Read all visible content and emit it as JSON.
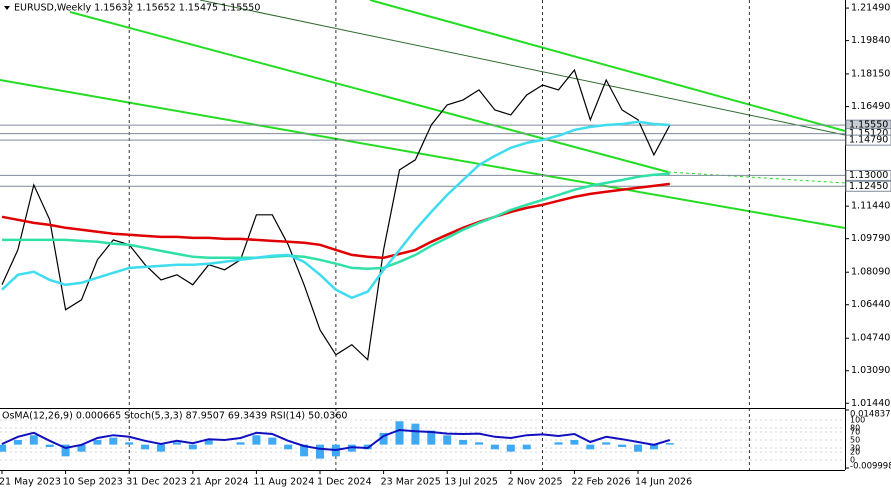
{
  "chart_data": [
    {
      "type": "line",
      "title": "EURUSD,Weekly 1.15632 1.15652 1.15475 1.15550",
      "categories": [
        "21 May 2023",
        null,
        null,
        null,
        "10 Sep 2023",
        null,
        null,
        null,
        "31 Dec 2023",
        null,
        null,
        null,
        "21 Apr 2024",
        null,
        null,
        null,
        "11 Aug 2024",
        null,
        null,
        null,
        "1 Dec 2024",
        null,
        null,
        null,
        "23 Mar 2025",
        null,
        null,
        null,
        "13 Jul 2025",
        null,
        null,
        null,
        "2 Nov 2025",
        null,
        null,
        null,
        "22 Feb 2026",
        null,
        null,
        null,
        "14 Jun 2026",
        null,
        null
      ],
      "series": [
        {
          "color": "#000000",
          "values": [
            1.0745,
            1.0923,
            1.1252,
            1.1075,
            1.0618,
            1.0669,
            1.0872,
            1.0973,
            1.0948,
            1.0847,
            1.077,
            1.0796,
            1.0745,
            1.0847,
            1.0821,
            1.0872,
            1.11,
            1.11,
            1.0948,
            1.0745,
            1.0517,
            1.039,
            1.0441,
            1.0365,
            1.0923,
            1.1328,
            1.1379,
            1.1556,
            1.1658,
            1.1683,
            1.1734,
            1.1632,
            1.1607,
            1.1708,
            1.1759,
            1.1734,
            1.1835,
            1.1582,
            1.1784,
            1.1632,
            1.1582,
            1.1404,
            1.1555
          ]
        },
        {
          "color": "#e00000",
          "values": [
            1.109,
            1.1075,
            1.1059,
            1.1049,
            1.1034,
            1.1024,
            1.1014,
            1.1004,
            1.0999,
            1.0993,
            1.0988,
            1.0988,
            1.0983,
            1.0983,
            1.0978,
            1.0978,
            1.0973,
            1.0968,
            1.0963,
            1.0958,
            1.0948,
            1.0922,
            1.0897,
            1.0887,
            1.0882,
            1.0902,
            1.0922,
            1.0963,
            1.0999,
            1.1034,
            1.1064,
            1.109,
            1.1115,
            1.1135,
            1.1151,
            1.1171,
            1.1191,
            1.1206,
            1.1217,
            1.1227,
            1.1237,
            1.1247,
            1.1257
          ]
        },
        {
          "color": "#2fe0a8",
          "values": [
            1.0973,
            1.0973,
            1.0973,
            1.0973,
            1.0973,
            1.0968,
            1.0963,
            1.0953,
            1.0948,
            1.0933,
            1.0917,
            1.0902,
            1.0887,
            1.0882,
            1.0882,
            1.0882,
            1.0882,
            1.0887,
            1.0892,
            1.0887,
            1.0872,
            1.0852,
            1.0831,
            1.0826,
            1.0831,
            1.0862,
            1.0897,
            1.0943,
            1.0983,
            1.1024,
            1.1059,
            1.109,
            1.1125,
            1.1151,
            1.1176,
            1.1201,
            1.1227,
            1.1247,
            1.1262,
            1.1277,
            1.1293,
            1.1303,
            1.1308
          ]
        },
        {
          "color": "#3fdcf0",
          "values": [
            1.072,
            1.0796,
            1.0811,
            1.077,
            1.0745,
            1.0755,
            1.0781,
            1.0806,
            1.0831,
            1.0836,
            1.0841,
            1.0847,
            1.0847,
            1.0852,
            1.0862,
            1.0872,
            1.0882,
            1.0892,
            1.0897,
            1.0862,
            1.0796,
            1.072,
            1.0679,
            1.071,
            1.0821,
            1.0922,
            1.1024,
            1.1115,
            1.1201,
            1.1277,
            1.1353,
            1.1399,
            1.144,
            1.1465,
            1.148,
            1.1501,
            1.1531,
            1.1546,
            1.1556,
            1.1561,
            1.1572,
            1.1561,
            1.1556
          ]
        }
      ],
      "ylim": [
        1.012,
        1.219
      ],
      "yticks": [
        {
          "value": 1.2149,
          "label": "1.21490"
        },
        {
          "value": 1.1984,
          "label": "1.19840"
        },
        {
          "value": 1.1815,
          "label": "1.18150"
        },
        {
          "value": 1.1649,
          "label": "1.16490"
        },
        {
          "value": 1.1144,
          "label": "1.11440"
        },
        {
          "value": 1.0979,
          "label": "1.09790"
        },
        {
          "value": 1.0809,
          "label": "1.08090"
        },
        {
          "value": 1.0644,
          "label": "1.06440"
        },
        {
          "value": 1.0474,
          "label": "1.04740"
        },
        {
          "value": 1.0309,
          "label": "1.03090"
        },
        {
          "value": 1.0144,
          "label": "1.01440"
        }
      ],
      "levels": [
        {
          "value": 1.1555,
          "label": "1.15550"
        },
        {
          "value": 1.1512,
          "label": "1.15120"
        },
        {
          "value": 1.1479,
          "label": "1.14790"
        },
        {
          "value": 1.13,
          "label": "1.13000"
        },
        {
          "value": 1.1245,
          "label": "1.12450"
        }
      ],
      "grid": true
    },
    {
      "type": "bar",
      "title": "OsMA(12,26,9) 0.000665 Stoch(5,3,3) 87.9507 69.3439 RSI(14) 50.0360",
      "color": "#3fa9f5",
      "values": [
        -0.003,
        0.002,
        0.004,
        -0.001,
        -0.005,
        -0.003,
        0.002,
        0.003,
        0.001,
        -0.002,
        -0.003,
        0.001,
        -0.002,
        0.002,
        0,
        0.001,
        0.004,
        0.003,
        -0.002,
        -0.005,
        -0.006,
        -0.005,
        -0.003,
        -0.002,
        0.005,
        0.01,
        0.009,
        0.006,
        0.004,
        0.002,
        0.001,
        -0.002,
        -0.003,
        -0.002,
        0,
        0.001,
        0.002,
        -0.002,
        0.001,
        -0.001,
        -0.003,
        -0.002,
        0.000665
      ],
      "ylim": [
        -0.0099985,
        0.0148375
      ],
      "yticks": [
        0.0148375,
        -0.0099985
      ],
      "y2lim": [
        0,
        100
      ],
      "y2ticks": [
        100,
        80,
        70,
        50,
        30,
        20,
        0
      ],
      "series": [
        {
          "axis": "y2",
          "color": "#1010c0",
          "values": [
            40,
            58,
            68,
            48,
            30,
            38,
            55,
            62,
            58,
            48,
            40,
            48,
            42,
            52,
            50,
            55,
            68,
            65,
            48,
            35,
            28,
            25,
            32,
            30,
            60,
            75,
            72,
            70,
            66,
            65,
            66,
            58,
            55,
            62,
            64,
            60,
            65,
            45,
            58,
            52,
            45,
            38,
            50.036
          ]
        }
      ]
    }
  ]
}
